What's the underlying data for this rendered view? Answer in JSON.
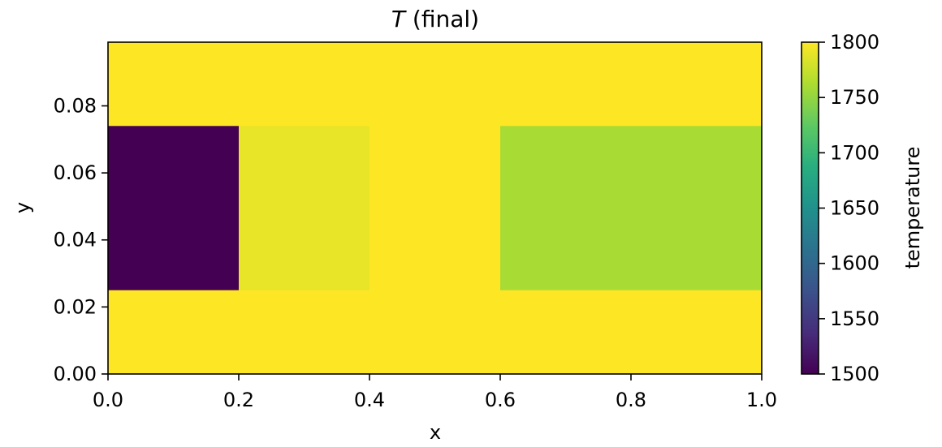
{
  "chart_data": {
    "type": "heatmap",
    "title": "(final)",
    "title_symbol": "T",
    "xlabel": "x",
    "ylabel": "y",
    "xlim": [
      0.0,
      1.0
    ],
    "ylim": [
      0.0,
      0.099
    ],
    "xticks": [
      "0.0",
      "0.2",
      "0.4",
      "0.6",
      "0.8",
      "1.0"
    ],
    "yticks": [
      "0.00",
      "0.02",
      "0.04",
      "0.06",
      "0.08"
    ],
    "colormap": "viridis",
    "colorbar": {
      "label": "temperature",
      "range": [
        1500,
        1800
      ],
      "ticks": [
        "1500",
        "1550",
        "1600",
        "1650",
        "1700",
        "1750",
        "1800"
      ]
    },
    "background_value": 1800,
    "regions": [
      {
        "x": [
          0.0,
          0.2
        ],
        "y": [
          0.025,
          0.074
        ],
        "value": 1500
      },
      {
        "x": [
          0.2,
          0.4
        ],
        "y": [
          0.025,
          0.074
        ],
        "value": 1790
      },
      {
        "x": [
          0.4,
          0.6
        ],
        "y": [
          0.025,
          0.074
        ],
        "value": 1800
      },
      {
        "x": [
          0.6,
          1.0
        ],
        "y": [
          0.025,
          0.074
        ],
        "value": 1760
      }
    ]
  }
}
